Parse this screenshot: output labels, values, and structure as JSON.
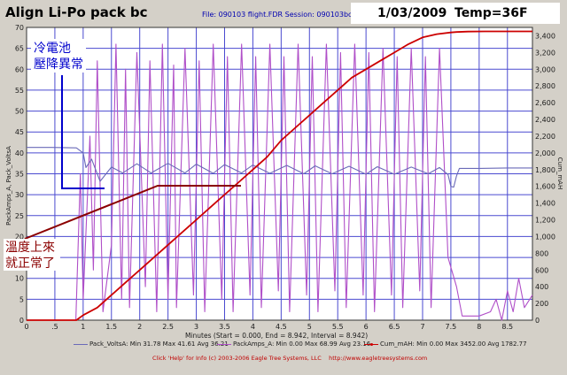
{
  "header": {
    "title": "Align Li-Po pack bc",
    "file_info": "File: 090103 flight.FDR   Session: 090103bc",
    "date": "1/03/2009",
    "temp": "Temp=36F"
  },
  "annotations": {
    "blue_note_line1": "冷電池",
    "blue_note_line2": "壓降異常",
    "red_note_line1": "溫度上來",
    "red_note_line2": "就正常了"
  },
  "x_axis_title": "Minutes (Start = 0.000,  End = 8.942,  Interval = 8.942)",
  "legend": [
    {
      "label": "Pack_VoltsA:  Min 31.78   Max 41.61   Avg 36.21",
      "color": "#6a6ab8"
    },
    {
      "label": "PackAmps_A:  Min 0.00   Max 68.99   Avg 23.16",
      "color": "#b04fc8"
    },
    {
      "label": "Cum_mAH:  Min 0.00   Max 3452.00   Avg 1782.77",
      "color": "#cc0000"
    }
  ],
  "footer": {
    "text": "Click 'Help' for Info  (c) 2003-2006 Eagle Tree Systems, LLC",
    "url": "http://www.eagletreesystems.com"
  },
  "colors": {
    "volts": "#6a6ab8",
    "amps": "#b04fc8",
    "mah": "#cc0000",
    "grid": "#4a4ad0",
    "blue_note": "#0000cc",
    "red_note": "#8b0000"
  },
  "chart_data": {
    "type": "line",
    "title": "Align Li-Po pack bc",
    "xlabel": "Minutes (Start = 0.000,  End = 8.942,  Interval = 8.942)",
    "left_axis_label": "PackAmps_A, Pack_VoltsA",
    "right_axis_label": "Cum_mAH",
    "xlim": [
      0,
      8.942
    ],
    "ylim_left": [
      0,
      70
    ],
    "ylim_right": [
      0,
      3500
    ],
    "x_ticks": [
      "0",
      ".5",
      "1",
      "1.5",
      "2",
      "2.5",
      "3",
      "3.5",
      "4",
      "4.5",
      "5",
      "5.5",
      "6",
      "6.5",
      "7",
      "7.5",
      "8",
      "8.5"
    ],
    "y_left_ticks": [
      "0",
      "5",
      "10",
      "15",
      "20",
      "25",
      "30",
      "35",
      "40",
      "45",
      "50",
      "55",
      "60",
      "65",
      "70"
    ],
    "y_right_ticks": [
      "0",
      "200",
      "400",
      "600",
      "800",
      "1,000",
      "1,200",
      "1,400",
      "1,600",
      "1,800",
      "2,000",
      "2,200",
      "2,400",
      "2,600",
      "2,800",
      "3,000",
      "3,200",
      "3,400"
    ],
    "grid": true,
    "series": [
      {
        "name": "Pack_VoltsA",
        "axis": "left",
        "x": [
          0,
          0.45,
          0.88,
          1.0,
          1.05,
          1.15,
          1.3,
          1.5,
          1.7,
          1.95,
          2.2,
          2.5,
          2.8,
          3.0,
          3.3,
          3.5,
          3.8,
          4.0,
          4.3,
          4.6,
          4.9,
          5.1,
          5.4,
          5.7,
          6.0,
          6.2,
          6.5,
          6.8,
          7.1,
          7.3,
          7.45,
          7.5,
          7.55,
          7.6,
          7.65,
          8.0,
          8.5,
          8.942
        ],
        "y": [
          41.3,
          41.3,
          41.2,
          40.0,
          36.5,
          38.5,
          33.2,
          36.6,
          35.2,
          37.4,
          35.2,
          37.5,
          35.2,
          37.3,
          35.1,
          37.2,
          35.2,
          37.1,
          35.1,
          37.0,
          35.0,
          36.9,
          35.0,
          36.8,
          34.9,
          36.7,
          34.9,
          36.6,
          35.0,
          36.5,
          34.8,
          32.0,
          31.8,
          34.5,
          36.3,
          36.3,
          36.4,
          36.4
        ]
      },
      {
        "name": "PackAmps_A",
        "axis": "left",
        "x": [
          0,
          0.87,
          0.95,
          1.0,
          1.12,
          1.18,
          1.25,
          1.35,
          1.5,
          1.58,
          1.68,
          1.75,
          1.82,
          1.95,
          2.1,
          2.18,
          2.3,
          2.4,
          2.5,
          2.6,
          2.65,
          2.8,
          2.95,
          3.05,
          3.15,
          3.3,
          3.45,
          3.55,
          3.65,
          3.8,
          3.95,
          4.05,
          4.15,
          4.3,
          4.45,
          4.55,
          4.65,
          4.8,
          4.95,
          5.05,
          5.15,
          5.3,
          5.45,
          5.55,
          5.65,
          5.8,
          5.95,
          6.05,
          6.15,
          6.3,
          6.45,
          6.55,
          6.65,
          6.8,
          6.95,
          7.05,
          7.15,
          7.3,
          7.45,
          7.6,
          7.7,
          8.0,
          8.2,
          8.3,
          8.4,
          8.5,
          8.6,
          8.7,
          8.8,
          8.942
        ],
        "y": [
          0,
          0,
          35,
          5,
          44,
          12,
          62,
          2,
          18,
          66,
          5,
          60,
          3,
          64,
          8,
          62,
          2,
          66,
          5,
          61,
          3,
          65,
          6,
          62,
          2,
          66,
          5,
          63,
          2,
          66,
          6,
          63,
          3,
          66,
          7,
          63,
          2,
          66,
          6,
          63,
          2,
          66,
          7,
          64,
          3,
          66,
          6,
          64,
          2,
          65,
          6,
          63,
          3,
          65,
          7,
          63,
          3,
          65,
          15,
          8,
          1,
          1,
          2,
          5,
          0,
          7,
          2,
          10,
          3,
          6
        ]
      },
      {
        "name": "Cum_mAH",
        "axis": "right",
        "x": [
          0,
          0.88,
          1.0,
          1.25,
          1.5,
          1.75,
          2.0,
          2.25,
          2.5,
          2.75,
          3.0,
          3.25,
          3.5,
          3.75,
          4.0,
          4.25,
          4.5,
          4.75,
          5.0,
          5.25,
          5.5,
          5.75,
          6.0,
          6.25,
          6.5,
          6.75,
          7.0,
          7.25,
          7.5,
          7.6,
          7.8,
          8.1,
          8.4,
          8.942
        ],
        "y": [
          0,
          0,
          60,
          150,
          300,
          450,
          600,
          750,
          900,
          1050,
          1200,
          1350,
          1500,
          1650,
          1800,
          1950,
          2150,
          2300,
          2450,
          2600,
          2750,
          2900,
          3000,
          3100,
          3200,
          3300,
          3380,
          3420,
          3440,
          3445,
          3450,
          3452,
          3452,
          3452
        ]
      }
    ]
  }
}
